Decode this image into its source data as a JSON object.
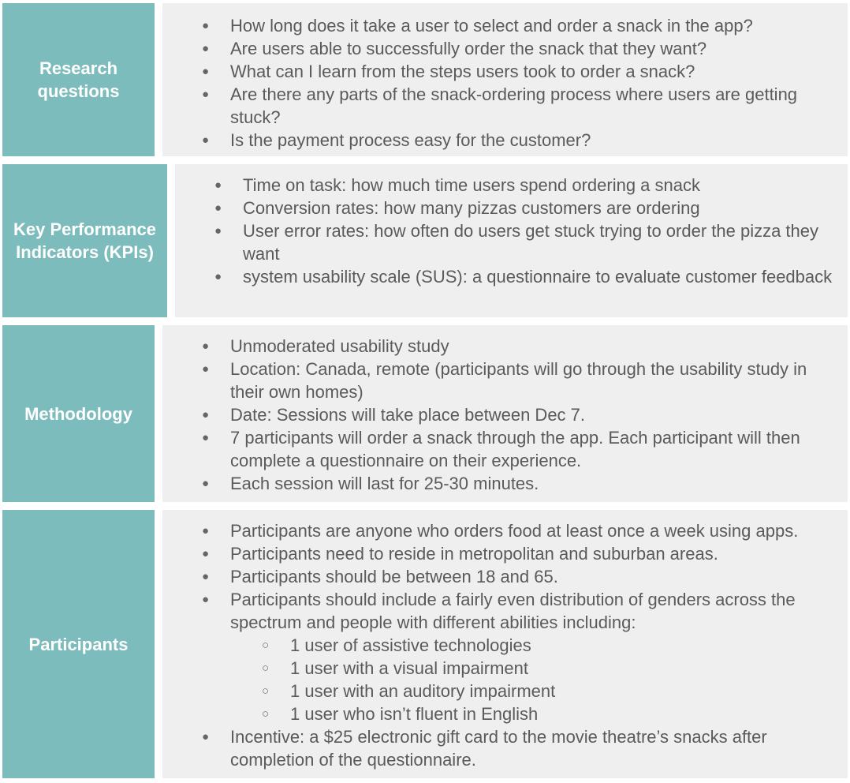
{
  "sections": [
    {
      "label": "Research questions",
      "items": [
        "How long does it take a user to select and order a snack in the app?",
        "Are users able to successfully order the snack that they want?",
        "What can I learn from the steps users took to order a snack?",
        "Are there any parts of the snack-ordering process where users are getting stuck?",
        "Is the payment process easy for the customer?"
      ]
    },
    {
      "label": "Key Performance Indicators (KPIs)",
      "items": [
        "Time on task: how much time users spend ordering a snack",
        "Conversion rates: how many pizzas customers are ordering",
        "User error rates: how often do users get stuck trying to order the pizza they want",
        "system usability scale (SUS): a questionnaire to evaluate customer feedback"
      ]
    },
    {
      "label": "Methodology",
      "items": [
        "Unmoderated usability study",
        "Location: Canada, remote (participants will go through the usability study in their own homes)",
        "Date: Sessions will take place between Dec 7.",
        "7 participants will order a snack through the app. Each participant will then complete a questionnaire on their experience.",
        "Each session will last for 25-30 minutes."
      ]
    },
    {
      "label": "Participants",
      "items": [
        "Participants are anyone who orders food at least once a week using apps.",
        "Participants need to reside in metropolitan and suburban areas.",
        "Participants should be between 18 and 65.",
        "Participants should include a fairly even distribution of genders across the spectrum and people with different abilities including:",
        "Incentive: a $25 electronic gift card to the movie theatre’s snacks after completion of the questionnaire."
      ],
      "subitems": [
        "1 user of assistive technologies",
        "1 user with a visual impairment",
        "1 user with an auditory impairment",
        "1 user who isn’t fluent in English"
      ]
    }
  ]
}
